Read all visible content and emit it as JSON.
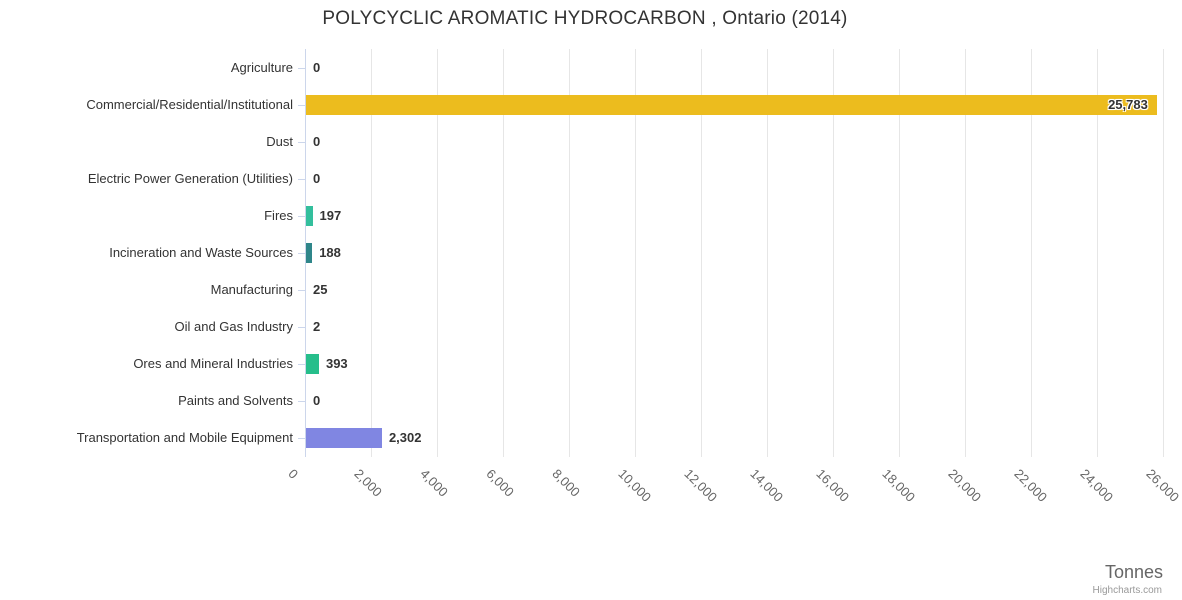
{
  "title": "POLYCYCLIC AROMATIC HYDROCARBON , Ontario (2014)",
  "credits_label": "Highcharts.com",
  "chart_data": {
    "type": "bar",
    "title": "POLYCYCLIC AROMATIC HYDROCARBON , Ontario (2014)",
    "xlabel": "Tonnes",
    "ylabel": "",
    "categories": [
      "Agriculture",
      "Commercial/Residential/Institutional",
      "Dust",
      "Electric Power Generation (Utilities)",
      "Fires",
      "Incineration and Waste Sources",
      "Manufacturing",
      "Oil and Gas Industry",
      "Ores and Mineral Industries",
      "Paints and Solvents",
      "Transportation and Mobile Equipment"
    ],
    "values": [
      0,
      25783,
      0,
      0,
      197,
      188,
      25,
      2,
      393,
      0,
      2302
    ],
    "value_labels": [
      "0",
      "25,783",
      "0",
      "0",
      "197",
      "188",
      "25",
      "2",
      "393",
      "0",
      "2,302"
    ],
    "bar_colors": [
      null,
      "#ecbc1e",
      null,
      null,
      "#33bf9d",
      "#2f868a",
      null,
      null,
      "#26be8b",
      null,
      "#8086e2"
    ],
    "xlim": [
      0,
      26000
    ],
    "x_tick_interval": 2000,
    "x_tick_labels": [
      "0",
      "2,000",
      "4,000",
      "6,000",
      "8,000",
      "10,000",
      "12,000",
      "14,000",
      "16,000",
      "18,000",
      "20,000",
      "22,000",
      "24,000",
      "26,000"
    ],
    "grid": true,
    "legend": false,
    "colors": {
      "grid": "#e6e6e6",
      "axis_line": "#ccd6eb",
      "title_text": "#333333",
      "category_text": "#333333",
      "value_text": "#333333",
      "tick_text": "#666666",
      "axis_title_text": "#666666",
      "credits_text": "#999999"
    }
  }
}
